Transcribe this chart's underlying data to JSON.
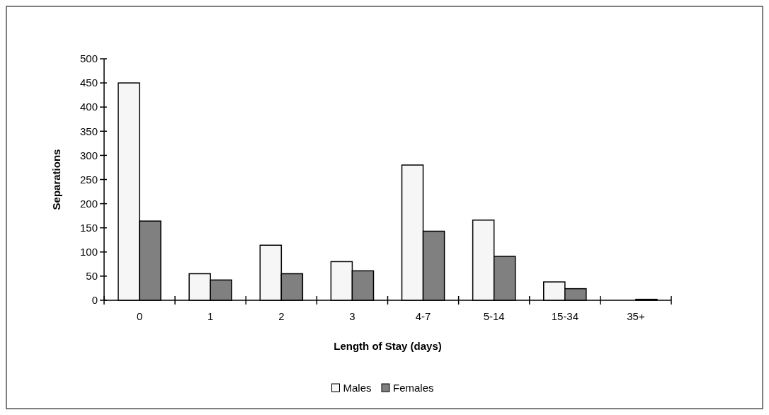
{
  "chart_data": {
    "type": "bar",
    "xlabel": "Length of Stay (days)",
    "ylabel": "Separations",
    "categories": [
      "0",
      "1",
      "2",
      "3",
      "4-7",
      "5-14",
      "15-34",
      "35+"
    ],
    "series": [
      {
        "name": "Males",
        "color": "#f6f6f6",
        "values": [
          450,
          55,
          114,
          80,
          280,
          166,
          38,
          0
        ]
      },
      {
        "name": "Females",
        "color": "#808080",
        "values": [
          164,
          42,
          55,
          61,
          143,
          91,
          24,
          2
        ]
      }
    ],
    "ylim": [
      0,
      500
    ],
    "yticks": [
      0,
      50,
      100,
      150,
      200,
      250,
      300,
      350,
      400,
      450,
      500
    ],
    "grid": false,
    "legend": "bottom"
  }
}
